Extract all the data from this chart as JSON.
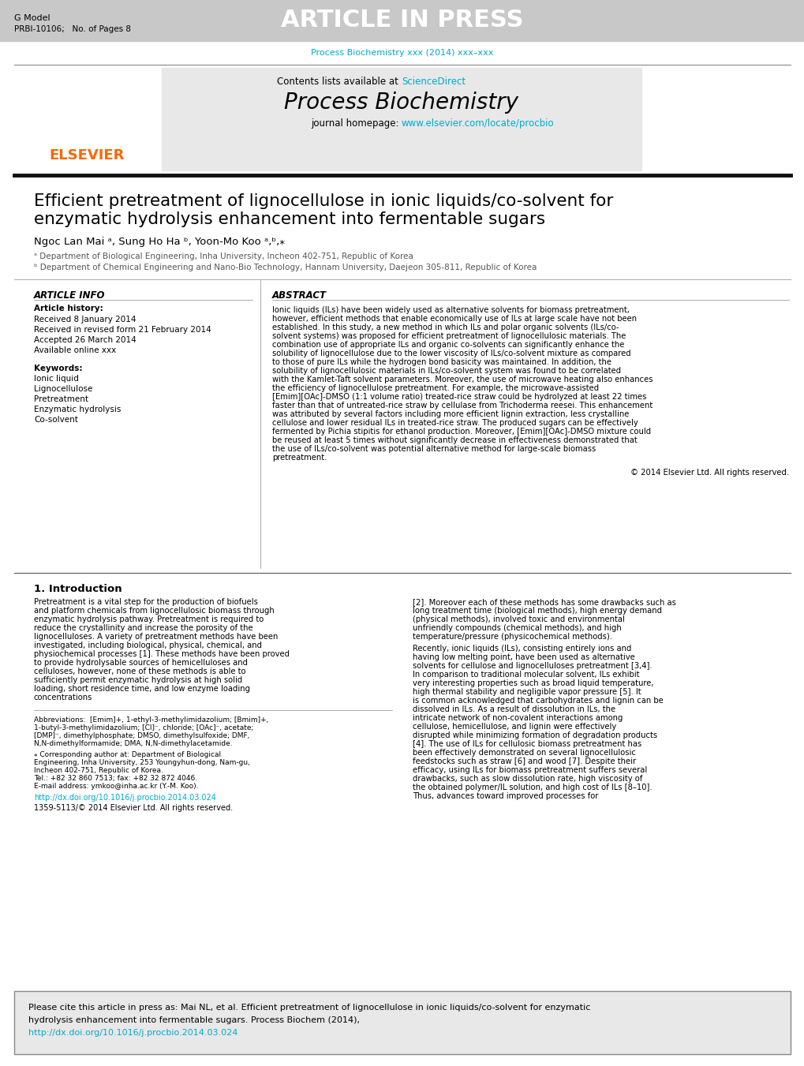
{
  "header_bg_color": "#c8c8c8",
  "header_text": "ARTICLE IN PRESS",
  "header_left_line1": "G Model",
  "header_left_line2": "PRBI-10106;   No. of Pages 8",
  "journal_cite_line": "Process Biochemistry xxx (2014) xxx–xxx",
  "journal_cite_color": "#00aacc",
  "contents_line": "Contents lists available at ScienceDirect",
  "journal_name": "Process Biochemistry",
  "journal_homepage_text": "journal homepage: www.elsevier.com/locate/procbio",
  "journal_homepage_url": "www.elsevier.com/locate/procbio",
  "url_color": "#00aacc",
  "elsevier_color": "#FF6600",
  "article_title_line1": "Efficient pretreatment of lignocellulose in ionic liquids/co-solvent for",
  "article_title_line2": "enzymatic hydrolysis enhancement into fermentable sugars",
  "authors": "Ngoc Lan Mai ᵃ, Sung Ho Ha ᵇ, Yoon-Mo Koo ᵃ,ᵇ,⁎",
  "affil_a": "ᵃ Department of Biological Engineering, Inha University, Incheon 402-751, Republic of Korea",
  "affil_b": "ᵇ Department of Chemical Engineering and Nano-Bio Technology, Hannam University, Daejeon 305-811, Republic of Korea",
  "article_info_title": "ARTICLE INFO",
  "abstract_title": "ABSTRACT",
  "article_history_label": "Article history:",
  "received_line": "Received 8 January 2014",
  "revised_line": "Received in revised form 21 February 2014",
  "accepted_line": "Accepted 26 March 2014",
  "available_line": "Available online xxx",
  "keywords_label": "Keywords:",
  "keywords": [
    "Ionic liquid",
    "Lignocellulose",
    "Pretreatment",
    "Enzymatic hydrolysis",
    "Co-solvent"
  ],
  "abstract_text": "Ionic liquids (ILs) have been widely used as alternative solvents for biomass pretreatment, however, efficient methods that enable economically use of ILs at large scale have not been established. In this study, a new method in which ILs and polar organic solvents (ILs/co-solvent systems) was proposed for efficient pretreatment of lignocellulosic materials. The combination use of appropriate ILs and organic co-solvents can significantly enhance the solubility of lignocellulose due to the lower viscosity of ILs/co-solvent mixture as compared to those of pure ILs while the hydrogen bond basicity was maintained. In addition, the solubility of lignocellulosic materials in ILs/co-solvent system was found to be correlated with the Kamlet-Taft solvent parameters. Moreover, the use of microwave heating also enhances the efficiency of lignocellulose pretreatment. For example, the microwave-assisted [Emim][OAc]-DMSO (1:1 volume ratio) treated-rice straw could be hydrolyzed at least 22 times faster than that of untreated-rice straw by cellulase from Trichoderma reesei. This enhancement was attributed by several factors including more efficient lignin extraction, less crystalline cellulose and lower residual ILs in treated-rice straw. The produced sugars can be effectively fermented by Pichia stipitis for ethanol production. Moreover, [Emim][OAc]-DMSO mixture could be reused at least 5 times without significantly decrease in effectiveness demonstrated that the use of ILs/co-solvent was potential alternative method for large-scale biomass pretreatment.",
  "copyright_line": "© 2014 Elsevier Ltd. All rights reserved.",
  "intro_title": "1. Introduction",
  "intro_text_col1": "Pretreatment is a vital step for the production of biofuels and platform chemicals from lignocellulosic biomass through enzymatic hydrolysis pathway. Pretreatment is required to reduce the crystallinity and increase the porosity of the lignocelluloses. A variety of pretreatment methods have been investigated, including biological, physical, chemical, and physiochemical processes [1]. These methods have been proved to provide hydrolysable sources of hemicelluloses and celluloses, however, none of these methods is able to sufficiently permit enzymatic hydrolysis at high solid loading, short residence time, and low enzyme loading concentrations",
  "intro_text_col2": "[2]. Moreover each of these methods has some drawbacks such as long treatment time (biological methods), high energy demand (physical methods), involved toxic and environmental unfriendly compounds (chemical methods), and high temperature/pressure (physicochemical methods).\n    Recently, ionic liquids (ILs), consisting entirely ions and having low melting point, have been used as alternative solvents for cellulose and lignocelluloses pretreatment [3,4]. In comparison to traditional molecular solvent, ILs exhibit very interesting properties such as broad liquid temperature, high thermal stability and negligible vapor pressure [5]. It is common acknowledged that carbohydrates and lignin can be dissolved in ILs. As a result of dissolution in ILs, the intricate network of non-covalent interactions among cellulose, hemicellulose, and lignin were effectively disrupted while minimizing formation of degradation products [4]. The use of ILs for cellulosic biomass pretreatment has been effectively demonstrated on several lignocellulosic feedstocks such as straw [6] and wood [7]. Despite their efficacy, using ILs for biomass pretreatment suffers several drawbacks, such as slow dissolution rate, high viscosity of the obtained polymer/IL solution, and high cost of ILs [8–10]. Thus, advances toward improved processes for",
  "footnote_abbrev": "Abbreviations:  [Emim]+, 1-ethyl-3-methylimidazolium; [Bmim]+, 1-butyl-3-methylimidazolium; [Cl]⁻, chloride; [OAc]⁻, acetate; [DMP]⁻, dimethylphosphate; DMSO, dimethylsulfoxide; DMF, N,N-dimethylformamide; DMA, N,N-dimethylacetamide.",
  "footnote_corresponding": "⁎ Corresponding author at: Department of Biological Engineering, Inha University, 253 Youngyhun-dong, Nam-gu, Incheon 402-751, Republic of Korea.\n    Tel.: +82 32 860 7513; fax: +82 32 872 4046.\n    E-mail address: ymkoo@inha.ac.kr (Y.-M. Koo).",
  "doi_line": "http://dx.doi.org/10.1016/j.procbio.2014.03.024",
  "issn_line": "1359-5113/© 2014 Elsevier Ltd. All rights reserved.",
  "citation_box_text": "Please cite this article in press as: Mai NL, et al. Efficient pretreatment of lignocellulose in ionic liquids/co-solvent for enzymatic hydrolysis enhancement into fermentable sugars. Process Biochem (2014), http://dx.doi.org/10.1016/j.procbio.2014.03.024",
  "citation_url": "http://dx.doi.org/10.1016/j.procbio.2014.03.024",
  "bg_color": "#ffffff",
  "text_color": "#000000",
  "light_gray": "#e8e8e8",
  "medium_gray": "#c8c8c8",
  "dark_line_color": "#333333",
  "section_separator_color": "#555555"
}
